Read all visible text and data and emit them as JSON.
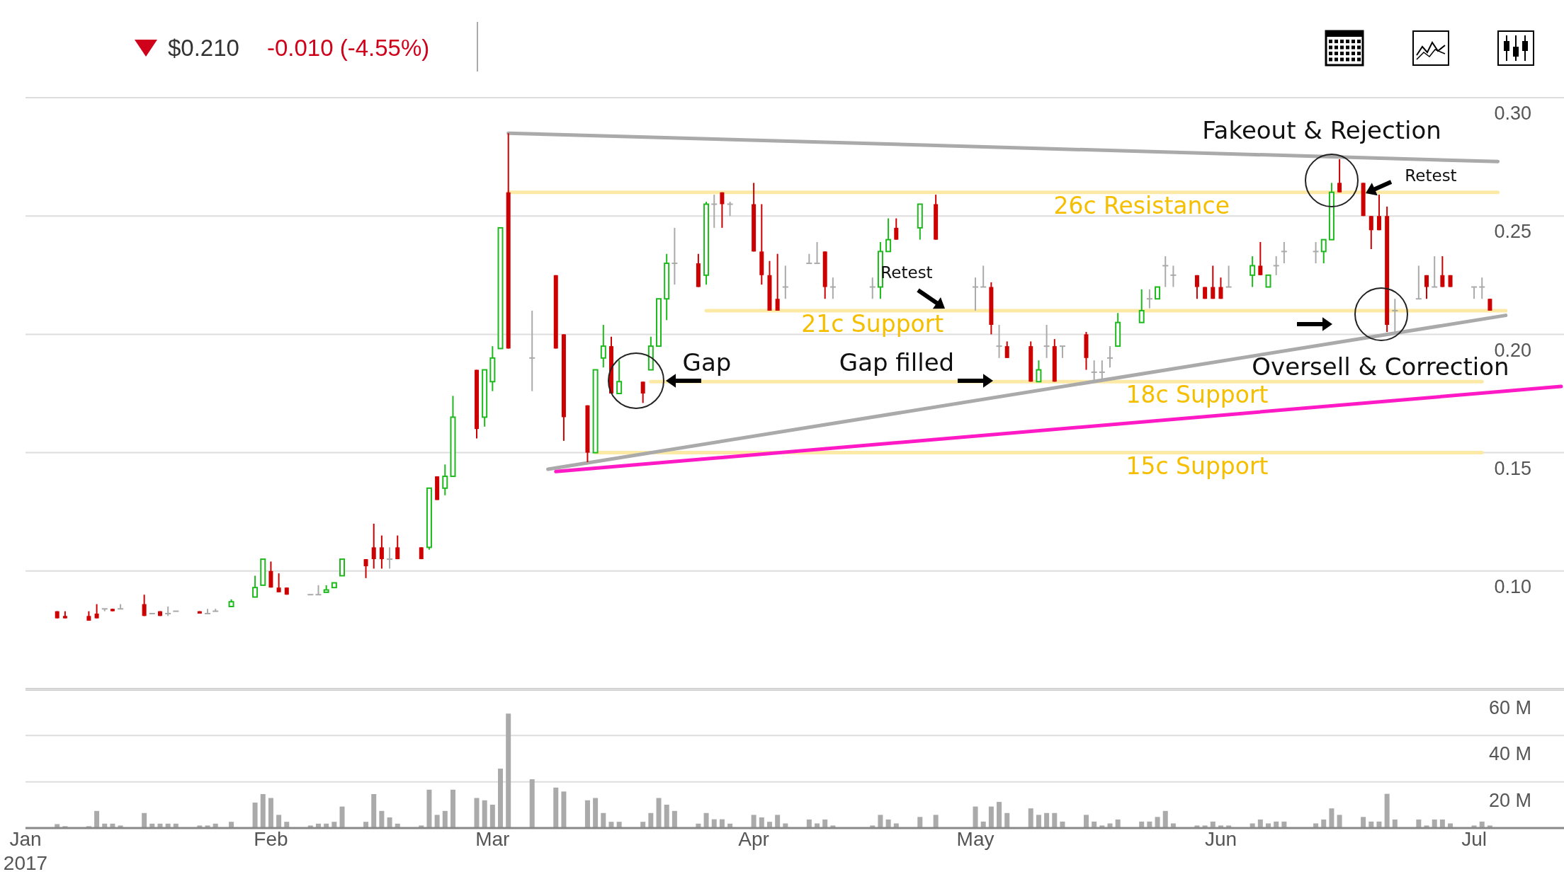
{
  "chart_data": [
    {
      "type": "candlestick",
      "title": "$0.210",
      "subtitle": "-0.010 (-4.55%)",
      "x": [
        "2017-01-05",
        "2017-01-06",
        "2017-01-09",
        "2017-01-10",
        "2017-01-11",
        "2017-01-12",
        "2017-01-13",
        "2017-01-16",
        "2017-01-17",
        "2017-01-18",
        "2017-01-19",
        "2017-01-20",
        "2017-01-23",
        "2017-01-24",
        "2017-01-25",
        "2017-01-27",
        "2017-01-30",
        "2017-01-31",
        "2017-02-01",
        "2017-02-02",
        "2017-02-03",
        "2017-02-06",
        "2017-02-07",
        "2017-02-08",
        "2017-02-09",
        "2017-02-10",
        "2017-02-13",
        "2017-02-14",
        "2017-02-15",
        "2017-02-16",
        "2017-02-17",
        "2017-02-20",
        "2017-02-21",
        "2017-02-22",
        "2017-02-23",
        "2017-02-24",
        "2017-02-27",
        "2017-02-28",
        "2017-03-01",
        "2017-03-02",
        "2017-03-03",
        "2017-03-06",
        "2017-03-09",
        "2017-03-10",
        "2017-03-13",
        "2017-03-14",
        "2017-03-15",
        "2017-03-16",
        "2017-03-17",
        "2017-03-20",
        "2017-03-21",
        "2017-03-22",
        "2017-03-23",
        "2017-03-24",
        "2017-03-27",
        "2017-03-28",
        "2017-03-29",
        "2017-03-30",
        "2017-03-31",
        "2017-04-03",
        "2017-04-04",
        "2017-04-05",
        "2017-04-06",
        "2017-04-07",
        "2017-04-10",
        "2017-04-11",
        "2017-04-12",
        "2017-04-13",
        "2017-04-18",
        "2017-04-19",
        "2017-04-20",
        "2017-04-21",
        "2017-04-24",
        "2017-04-26",
        "2017-05-01",
        "2017-05-02",
        "2017-05-03",
        "2017-05-04",
        "2017-05-05",
        "2017-05-08",
        "2017-05-09",
        "2017-05-10",
        "2017-05-11",
        "2017-05-12",
        "2017-05-15",
        "2017-05-16",
        "2017-05-17",
        "2017-05-18",
        "2017-05-19",
        "2017-05-22",
        "2017-05-23",
        "2017-05-24",
        "2017-05-25",
        "2017-05-26",
        "2017-05-29",
        "2017-05-30",
        "2017-05-31",
        "2017-06-01",
        "2017-06-02",
        "2017-06-05",
        "2017-06-06",
        "2017-06-07",
        "2017-06-08",
        "2017-06-09",
        "2017-06-13",
        "2017-06-14",
        "2017-06-15",
        "2017-06-16",
        "2017-06-19",
        "2017-06-20",
        "2017-06-21",
        "2017-06-22",
        "2017-06-23",
        "2017-06-26",
        "2017-06-27",
        "2017-06-28",
        "2017-06-29",
        "2017-06-30",
        "2017-07-03",
        "2017-07-04",
        "2017-07-05"
      ],
      "ohlc": [
        [
          0.083,
          0.083,
          0.08,
          0.08
        ],
        [
          0.081,
          0.083,
          0.08,
          0.08
        ],
        [
          0.081,
          0.083,
          0.079,
          0.079
        ],
        [
          0.082,
          0.086,
          0.08,
          0.08
        ],
        [
          0.084,
          0.084,
          0.083,
          0.084
        ],
        [
          0.084,
          0.084,
          0.083,
          0.083
        ],
        [
          0.084,
          0.086,
          0.084,
          0.084
        ],
        [
          0.086,
          0.09,
          0.081,
          0.081
        ],
        [
          0.082,
          0.082,
          0.082,
          0.082
        ],
        [
          0.083,
          0.083,
          0.081,
          0.081
        ],
        [
          0.082,
          0.085,
          0.081,
          0.082
        ],
        [
          0.083,
          0.083,
          0.083,
          0.083
        ],
        [
          0.083,
          0.083,
          0.082,
          0.082
        ],
        [
          0.082,
          0.084,
          0.082,
          0.082
        ],
        [
          0.083,
          0.084,
          0.083,
          0.083
        ],
        [
          0.085,
          0.088,
          0.085,
          0.087
        ],
        [
          0.089,
          0.098,
          0.089,
          0.093
        ],
        [
          0.094,
          0.105,
          0.094,
          0.105
        ],
        [
          0.1,
          0.104,
          0.093,
          0.093
        ],
        [
          0.093,
          0.099,
          0.091,
          0.091
        ],
        [
          0.093,
          0.093,
          0.09,
          0.09
        ],
        [
          0.09,
          0.09,
          0.09,
          0.09
        ],
        [
          0.09,
          0.094,
          0.09,
          0.09
        ],
        [
          0.091,
          0.094,
          0.091,
          0.092
        ],
        [
          0.093,
          0.095,
          0.093,
          0.095
        ],
        [
          0.098,
          0.105,
          0.098,
          0.105
        ],
        [
          0.105,
          0.105,
          0.097,
          0.102
        ],
        [
          0.11,
          0.12,
          0.101,
          0.105
        ],
        [
          0.11,
          0.115,
          0.101,
          0.105
        ],
        [
          0.105,
          0.11,
          0.101,
          0.105
        ],
        [
          0.11,
          0.115,
          0.105,
          0.105
        ],
        [
          0.11,
          0.11,
          0.105,
          0.105
        ],
        [
          0.11,
          0.135,
          0.109,
          0.135
        ],
        [
          0.14,
          0.14,
          0.13,
          0.13
        ],
        [
          0.135,
          0.145,
          0.132,
          0.14
        ],
        [
          0.14,
          0.174,
          0.14,
          0.165
        ],
        [
          0.185,
          0.185,
          0.156,
          0.16
        ],
        [
          0.165,
          0.185,
          0.161,
          0.185
        ],
        [
          0.18,
          0.195,
          0.176,
          0.19
        ],
        [
          0.194,
          0.245,
          0.194,
          0.245
        ],
        [
          0.26,
          0.285,
          0.194,
          0.194
        ],
        [
          0.19,
          0.21,
          0.176,
          0.19
        ],
        [
          0.225,
          0.225,
          0.194,
          0.194
        ],
        [
          0.2,
          0.2,
          0.155,
          0.165
        ],
        [
          0.17,
          0.17,
          0.146,
          0.15
        ],
        [
          0.15,
          0.185,
          0.15,
          0.185
        ],
        [
          0.19,
          0.204,
          0.186,
          0.195
        ],
        [
          0.195,
          0.199,
          0.175,
          0.175
        ],
        [
          0.175,
          0.189,
          0.175,
          0.18
        ],
        [
          0.18,
          0.18,
          0.171,
          0.175
        ],
        [
          0.185,
          0.199,
          0.185,
          0.195
        ],
        [
          0.195,
          0.215,
          0.195,
          0.215
        ],
        [
          0.215,
          0.234,
          0.206,
          0.23
        ],
        [
          0.23,
          0.245,
          0.221,
          0.23
        ],
        [
          0.23,
          0.234,
          0.22,
          0.22
        ],
        [
          0.225,
          0.256,
          0.221,
          0.255
        ],
        [
          0.255,
          0.259,
          0.245,
          0.255
        ],
        [
          0.26,
          0.26,
          0.245,
          0.255
        ],
        [
          0.255,
          0.256,
          0.25,
          0.255
        ],
        [
          0.255,
          0.264,
          0.235,
          0.235
        ],
        [
          0.235,
          0.255,
          0.221,
          0.225
        ],
        [
          0.225,
          0.231,
          0.21,
          0.21
        ],
        [
          0.215,
          0.234,
          0.21,
          0.21
        ],
        [
          0.22,
          0.229,
          0.215,
          0.22
        ],
        [
          0.23,
          0.234,
          0.23,
          0.23
        ],
        [
          0.23,
          0.239,
          0.23,
          0.23
        ],
        [
          0.235,
          0.235,
          0.215,
          0.22
        ],
        [
          0.22,
          0.224,
          0.215,
          0.22
        ],
        [
          0.22,
          0.224,
          0.215,
          0.22
        ],
        [
          0.22,
          0.239,
          0.215,
          0.235
        ],
        [
          0.235,
          0.249,
          0.235,
          0.24
        ],
        [
          0.245,
          0.249,
          0.24,
          0.24
        ],
        [
          0.245,
          0.255,
          0.24,
          0.255
        ],
        [
          0.255,
          0.259,
          0.24,
          0.24
        ],
        [
          0.22,
          0.224,
          0.21,
          0.22
        ],
        [
          0.22,
          0.229,
          0.22,
          0.22
        ],
        [
          0.22,
          0.222,
          0.2,
          0.204
        ],
        [
          0.195,
          0.204,
          0.19,
          0.195
        ],
        [
          0.195,
          0.197,
          0.19,
          0.19
        ],
        [
          0.195,
          0.197,
          0.18,
          0.18
        ],
        [
          0.18,
          0.189,
          0.18,
          0.185
        ],
        [
          0.195,
          0.204,
          0.19,
          0.195
        ],
        [
          0.195,
          0.198,
          0.18,
          0.18
        ],
        [
          0.195,
          0.195,
          0.19,
          0.195
        ],
        [
          0.2,
          0.201,
          0.185,
          0.19
        ],
        [
          0.184,
          0.189,
          0.18,
          0.184
        ],
        [
          0.184,
          0.189,
          0.18,
          0.184
        ],
        [
          0.19,
          0.195,
          0.186,
          0.19
        ],
        [
          0.195,
          0.209,
          0.195,
          0.205
        ],
        [
          0.205,
          0.219,
          0.205,
          0.21
        ],
        [
          0.215,
          0.219,
          0.211,
          0.215
        ],
        [
          0.215,
          0.22,
          0.215,
          0.22
        ],
        [
          0.229,
          0.233,
          0.22,
          0.229
        ],
        [
          0.225,
          0.229,
          0.22,
          0.225
        ],
        [
          0.225,
          0.225,
          0.215,
          0.22
        ],
        [
          0.22,
          0.22,
          0.215,
          0.215
        ],
        [
          0.22,
          0.229,
          0.215,
          0.215
        ],
        [
          0.22,
          0.224,
          0.215,
          0.215
        ],
        [
          0.22,
          0.229,
          0.22,
          0.22
        ],
        [
          0.225,
          0.233,
          0.22,
          0.229
        ],
        [
          0.229,
          0.239,
          0.225,
          0.225
        ],
        [
          0.22,
          0.225,
          0.22,
          0.225
        ],
        [
          0.229,
          0.233,
          0.225,
          0.229
        ],
        [
          0.235,
          0.239,
          0.23,
          0.235
        ],
        [
          0.235,
          0.239,
          0.23,
          0.235
        ],
        [
          0.235,
          0.24,
          0.23,
          0.24
        ],
        [
          0.24,
          0.264,
          0.24,
          0.26
        ],
        [
          0.264,
          0.274,
          0.26,
          0.26
        ],
        [
          0.264,
          0.264,
          0.25,
          0.25
        ],
        [
          0.25,
          0.25,
          0.236,
          0.244
        ],
        [
          0.25,
          0.259,
          0.244,
          0.244
        ],
        [
          0.25,
          0.254,
          0.201,
          0.204
        ],
        [
          0.21,
          0.215,
          0.2,
          0.21
        ],
        [
          0.215,
          0.229,
          0.215,
          0.215
        ],
        [
          0.225,
          0.225,
          0.215,
          0.22
        ],
        [
          0.22,
          0.233,
          0.22,
          0.22
        ],
        [
          0.225,
          0.233,
          0.22,
          0.22
        ],
        [
          0.225,
          0.225,
          0.22,
          0.22
        ],
        [
          0.22,
          0.22,
          0.215,
          0.22
        ],
        [
          0.22,
          0.224,
          0.215,
          0.22
        ],
        [
          0.215,
          0.215,
          0.21,
          0.21
        ]
      ],
      "series": [
        {
          "type": "line",
          "name": "26c Resistance",
          "color": "#fce9a6",
          "x": [
            "2017-03-03",
            "2017-05-22",
            "2017-07-06"
          ],
          "values": [
            0.26,
            0.26,
            0.26
          ]
        },
        {
          "type": "line",
          "name": "21c Support",
          "color": "#fce9a6",
          "x": [
            "2017-03-28",
            "2017-04-18",
            "2017-07-07"
          ],
          "values": [
            0.21,
            0.21,
            0.21
          ]
        },
        {
          "type": "line",
          "name": "18c Support",
          "color": "#fce9a6",
          "x": [
            "2017-03-21",
            "2017-05-29",
            "2017-07-04"
          ],
          "values": [
            0.18,
            0.18,
            0.18
          ]
        },
        {
          "type": "line",
          "name": "15c Support",
          "color": "#fce9a6",
          "x": [
            "2017-03-14",
            "2017-05-29",
            "2017-07-04"
          ],
          "values": [
            0.15,
            0.15,
            0.15
          ]
        },
        {
          "type": "line",
          "color": "#aaaaaa",
          "x": [
            "2017-03-03",
            "2017-07-06"
          ],
          "values": [
            0.285,
            0.273
          ]
        },
        {
          "type": "line",
          "color": "#aaaaaa",
          "x": [
            "2017-03-08",
            "2017-07-07"
          ],
          "values": [
            0.143,
            0.208
          ]
        },
        {
          "type": "line",
          "color": "#ff1ac6",
          "x": [
            "2017-03-09",
            "2017-07-14"
          ],
          "values": [
            0.142,
            0.178
          ]
        }
      ],
      "annotations": [
        "Fakeout & Rejection",
        "Retest",
        "Retest",
        "Gap",
        "Gap filled",
        "Oversell & Correction"
      ],
      "ylim": [
        0.05,
        0.3
      ],
      "yticks": [
        {
          "value": 0.1,
          "label": "0.10"
        },
        0.15,
        {
          "value": 0.2,
          "label": "0.20"
        },
        0.25,
        {
          "value": 0.3,
          "label": "0.30"
        }
      ],
      "xlim": [
        "2017-01-01",
        "2017-07-14"
      ],
      "grid": "y",
      "tick_labels": "y"
    },
    {
      "type": "bar",
      "color": "#aaaaaa",
      "x": [
        "2017-01-05",
        "2017-01-06",
        "2017-01-09",
        "2017-01-10",
        "2017-01-11",
        "2017-01-12",
        "2017-01-13",
        "2017-01-16",
        "2017-01-17",
        "2017-01-18",
        "2017-01-19",
        "2017-01-20",
        "2017-01-23",
        "2017-01-24",
        "2017-01-25",
        "2017-01-27",
        "2017-01-30",
        "2017-01-31",
        "2017-02-01",
        "2017-02-02",
        "2017-02-03",
        "2017-02-06",
        "2017-02-07",
        "2017-02-08",
        "2017-02-09",
        "2017-02-10",
        "2017-02-13",
        "2017-02-14",
        "2017-02-15",
        "2017-02-16",
        "2017-02-17",
        "2017-02-20",
        "2017-02-21",
        "2017-02-22",
        "2017-02-23",
        "2017-02-24",
        "2017-02-27",
        "2017-02-28",
        "2017-03-01",
        "2017-03-02",
        "2017-03-03",
        "2017-03-06",
        "2017-03-09",
        "2017-03-10",
        "2017-03-13",
        "2017-03-14",
        "2017-03-15",
        "2017-03-16",
        "2017-03-17",
        "2017-03-20",
        "2017-03-21",
        "2017-03-22",
        "2017-03-23",
        "2017-03-24",
        "2017-03-27",
        "2017-03-28",
        "2017-03-29",
        "2017-03-30",
        "2017-03-31",
        "2017-04-03",
        "2017-04-04",
        "2017-04-05",
        "2017-04-06",
        "2017-04-07",
        "2017-04-10",
        "2017-04-11",
        "2017-04-12",
        "2017-04-13",
        "2017-04-18",
        "2017-04-19",
        "2017-04-20",
        "2017-04-21",
        "2017-04-24",
        "2017-04-26",
        "2017-05-01",
        "2017-05-02",
        "2017-05-03",
        "2017-05-04",
        "2017-05-05",
        "2017-05-08",
        "2017-05-09",
        "2017-05-10",
        "2017-05-11",
        "2017-05-12",
        "2017-05-15",
        "2017-05-16",
        "2017-05-17",
        "2017-05-18",
        "2017-05-19",
        "2017-05-22",
        "2017-05-23",
        "2017-05-24",
        "2017-05-25",
        "2017-05-26",
        "2017-05-29",
        "2017-05-30",
        "2017-05-31",
        "2017-06-01",
        "2017-06-02",
        "2017-06-05",
        "2017-06-06",
        "2017-06-07",
        "2017-06-08",
        "2017-06-09",
        "2017-06-13",
        "2017-06-14",
        "2017-06-15",
        "2017-06-16",
        "2017-06-19",
        "2017-06-20",
        "2017-06-21",
        "2017-06-22",
        "2017-06-23",
        "2017-06-26",
        "2017-06-27",
        "2017-06-28",
        "2017-06-29",
        "2017-06-30",
        "2017-07-03",
        "2017-07-04",
        "2017-07-05"
      ],
      "values": [
        1.7,
        0.8,
        0.8,
        7.4,
        1.9,
        1.9,
        1.1,
        6.5,
        1.9,
        1.9,
        1.9,
        1.9,
        1.1,
        1.1,
        1.9,
        2.7,
        11,
        14.7,
        13,
        5.7,
        2.7,
        1.1,
        1.9,
        1.9,
        2.7,
        9.3,
        2.7,
        14.7,
        7.4,
        4.6,
        1.9,
        1.1,
        16.6,
        5.7,
        7.4,
        16.6,
        13,
        12,
        10.1,
        25.7,
        49.5,
        21.1,
        17.5,
        15.8,
        12,
        13,
        6.5,
        2.7,
        2.7,
        2.7,
        6.5,
        13,
        10.1,
        7.4,
        1.9,
        6.5,
        3.8,
        3.8,
        1.9,
        5.7,
        4.6,
        2.7,
        5.7,
        2,
        3.7,
        2,
        3.7,
        1.1,
        1.1,
        5.7,
        3.7,
        2,
        4.8,
        5.7,
        9.3,
        2.8,
        9.3,
        11.3,
        6.5,
        8.5,
        5.7,
        6.5,
        6.5,
        2.8,
        5.7,
        2.8,
        1.1,
        2,
        3.7,
        2.8,
        2.8,
        4.8,
        7.4,
        2,
        1.1,
        1.1,
        2.8,
        1.1,
        1.1,
        2,
        3.7,
        2,
        2.8,
        2.8,
        2,
        3.7,
        8.5,
        5.7,
        4.8,
        2.8,
        2.8,
        14.8,
        3.7,
        3.7,
        1.1,
        3.7,
        3.7,
        2,
        1.1,
        2.8,
        1.1
      ],
      "xlim": [
        "2017-01-01",
        "2017-07-14"
      ],
      "ylim": [
        0,
        60
      ],
      "yticks": [
        {
          "value": 20,
          "label": "20 M"
        },
        {
          "value": 40,
          "label": "40 M"
        },
        {
          "value": 60,
          "label": "60 M"
        }
      ],
      "xticks": [
        {
          "value": "2017-01-01",
          "label": "Jan 2017"
        },
        {
          "value": "2017-02-01",
          "label": "Feb"
        },
        {
          "value": "2017-03-01",
          "label": "Mar"
        },
        {
          "value": "2017-04-03",
          "label": "Apr"
        },
        {
          "value": "2017-05-01",
          "label": "May"
        },
        {
          "value": "2017-06-01",
          "label": "Jun"
        },
        {
          "value": "2017-07-03",
          "label": "Jul"
        }
      ],
      "grid": "y"
    }
  ]
}
